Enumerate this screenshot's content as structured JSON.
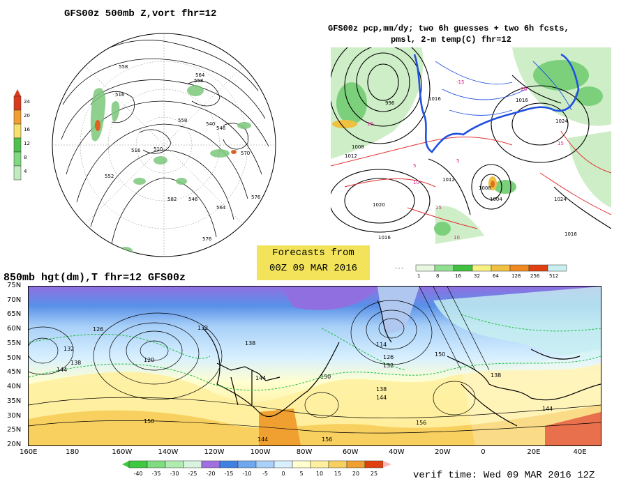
{
  "panel_500mb": {
    "title": "GFS00z  500mb Z,vort    fhr=12",
    "colorbar_labels": [
      "24",
      "20",
      "16",
      "12",
      "8",
      "4"
    ],
    "colorbar_colors": [
      "#d83a1a",
      "#f0a030",
      "#f5e070",
      "#50c050",
      "#80d880",
      "#c0ecc0"
    ],
    "contour_labels": [
      "558",
      "558",
      "516",
      "516",
      "510",
      "564",
      "558",
      "540",
      "546",
      "552",
      "576",
      "570",
      "576",
      "564",
      "582",
      "546"
    ]
  },
  "panel_precip": {
    "title_line1": "GFS00z pcp,mm/dy; two 6h guesses + two 6h fcsts,",
    "title_line2": "pmsl, 2-m temp(C)  fhr=12",
    "isobar_labels": [
      "996",
      "1008",
      "1012",
      "1020",
      "1016",
      "1024",
      "1016",
      "1008",
      "1004",
      "1012",
      "1016",
      "1024",
      "1016"
    ],
    "temp_labels": [
      "10",
      "5",
      "10",
      "15",
      "-15",
      "-20",
      "15",
      "5",
      "10"
    ],
    "colorbar_labels": [
      "1",
      "8",
      "16",
      "32",
      "64",
      "128",
      "256",
      "512"
    ],
    "colorbar_colors": [
      "#e8f8e0",
      "#90e090",
      "#40c040",
      "#f8f080",
      "#f0c040",
      "#f08a20",
      "#e04010",
      "#c8f0f0"
    ]
  },
  "forecast_box": {
    "line1": "Forecasts from",
    "line2": "00Z 09 MAR 2016"
  },
  "panel_850mb": {
    "title": "850mb hgt(dm),T  fhr=12 GFS00z",
    "lat_labels": [
      "75N",
      "70N",
      "65N",
      "60N",
      "55N",
      "50N",
      "45N",
      "40N",
      "35N",
      "30N",
      "25N",
      "20N"
    ],
    "lon_labels": [
      "160E",
      "180",
      "160W",
      "140W",
      "120W",
      "100W",
      "80W",
      "60W",
      "40W",
      "20W",
      "0",
      "20E",
      "40E"
    ],
    "height_labels": [
      "126",
      "132",
      "138",
      "144",
      "120",
      "150",
      "132",
      "138",
      "144",
      "114",
      "126",
      "132",
      "150",
      "138",
      "144",
      "156",
      "144",
      "138",
      "156",
      "144",
      "150"
    ],
    "colorbar_labels": [
      "-40",
      "-35",
      "-30",
      "-25",
      "-20",
      "-15",
      "-10",
      "-5",
      "0",
      "5",
      "10",
      "15",
      "20",
      "25"
    ],
    "colorbar_colors": [
      "#40c840",
      "#80dc80",
      "#b0ecb0",
      "#d8f4e0",
      "#a070e0",
      "#4080e0",
      "#70a8f0",
      "#a8d0f8",
      "#d8f0ff",
      "#ffffd0",
      "#fff0a0",
      "#f8d060",
      "#f0a030",
      "#e04010"
    ]
  },
  "verif_time": "verif time: Wed 09 MAR 2016 12Z"
}
